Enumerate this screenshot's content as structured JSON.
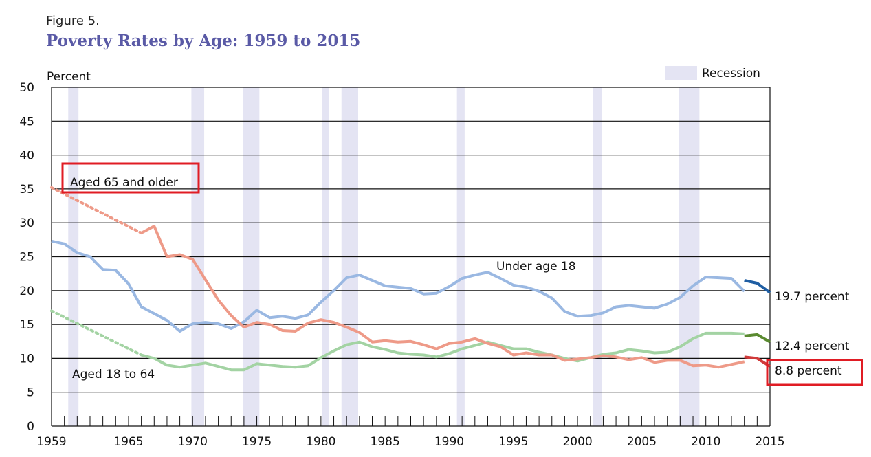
{
  "figure": {
    "label": "Figure 5.",
    "title": "Poverty Rates by Age: 1959 to 2015"
  },
  "chart_data": {
    "type": "line",
    "title": "Poverty Rates by Age: 1959 to 2015",
    "ylabel": "Percent",
    "xlabel": "",
    "xlim": [
      1959,
      2015
    ],
    "ylim": [
      0,
      50
    ],
    "yticks": [
      0,
      5,
      10,
      15,
      20,
      25,
      30,
      35,
      40,
      45,
      50
    ],
    "xtick_labels": [
      1959,
      1965,
      1970,
      1975,
      1980,
      1985,
      1990,
      1995,
      2000,
      2005,
      2010,
      2015
    ],
    "grid": true,
    "legend": {
      "label": "Recession",
      "position": "top-right"
    },
    "recessions": [
      [
        1960.3,
        1961.1
      ],
      [
        1969.9,
        1970.9
      ],
      [
        1973.9,
        1975.2
      ],
      [
        1980.1,
        1980.6
      ],
      [
        1981.6,
        1982.9
      ],
      [
        1990.6,
        1991.2
      ],
      [
        2001.2,
        2001.9
      ],
      [
        2007.9,
        2009.5
      ]
    ],
    "series": [
      {
        "name": "Under age 18",
        "color": "#9ab8e2",
        "points": [
          [
            1959,
            27.3
          ],
          [
            1960,
            26.9
          ],
          [
            1961,
            25.6
          ],
          [
            1962,
            25.0
          ],
          [
            1963,
            23.1
          ],
          [
            1964,
            23.0
          ],
          [
            1965,
            21.0
          ],
          [
            1966,
            17.6
          ],
          [
            1967,
            16.6
          ],
          [
            1968,
            15.6
          ],
          [
            1969,
            14.0
          ],
          [
            1970,
            15.1
          ],
          [
            1971,
            15.3
          ],
          [
            1972,
            15.1
          ],
          [
            1973,
            14.4
          ],
          [
            1974,
            15.4
          ],
          [
            1975,
            17.1
          ],
          [
            1976,
            16.0
          ],
          [
            1977,
            16.2
          ],
          [
            1978,
            15.9
          ],
          [
            1979,
            16.4
          ],
          [
            1980,
            18.3
          ],
          [
            1981,
            20.0
          ],
          [
            1982,
            21.9
          ],
          [
            1983,
            22.3
          ],
          [
            1984,
            21.5
          ],
          [
            1985,
            20.7
          ],
          [
            1986,
            20.5
          ],
          [
            1987,
            20.3
          ],
          [
            1988,
            19.5
          ],
          [
            1989,
            19.6
          ],
          [
            1990,
            20.6
          ],
          [
            1991,
            21.8
          ],
          [
            1992,
            22.3
          ],
          [
            1993,
            22.7
          ],
          [
            1994,
            21.8
          ],
          [
            1995,
            20.8
          ],
          [
            1996,
            20.5
          ],
          [
            1997,
            19.9
          ],
          [
            1998,
            18.9
          ],
          [
            1999,
            16.9
          ],
          [
            2000,
            16.2
          ],
          [
            2001,
            16.3
          ],
          [
            2002,
            16.7
          ],
          [
            2003,
            17.6
          ],
          [
            2004,
            17.8
          ],
          [
            2005,
            17.6
          ],
          [
            2006,
            17.4
          ],
          [
            2007,
            18.0
          ],
          [
            2008,
            19.0
          ],
          [
            2009,
            20.7
          ],
          [
            2010,
            22.0
          ],
          [
            2011,
            21.9
          ],
          [
            2012,
            21.8
          ],
          [
            2013,
            19.9
          ]
        ],
        "recent_points": [
          [
            2013,
            21.5
          ],
          [
            2014,
            21.1
          ],
          [
            2015,
            19.7
          ]
        ],
        "recent_color": "#1f5ea3",
        "end_label": "19.7 percent"
      },
      {
        "name": "Aged 18 to 64",
        "color": "#a3d3a3",
        "dotted_points": [
          [
            1959,
            17.0
          ],
          [
            1966,
            10.5
          ]
        ],
        "points": [
          [
            1966,
            10.5
          ],
          [
            1967,
            10.0
          ],
          [
            1968,
            9.0
          ],
          [
            1969,
            8.7
          ],
          [
            1970,
            9.0
          ],
          [
            1971,
            9.3
          ],
          [
            1972,
            8.8
          ],
          [
            1973,
            8.3
          ],
          [
            1974,
            8.3
          ],
          [
            1975,
            9.2
          ],
          [
            1976,
            9.0
          ],
          [
            1977,
            8.8
          ],
          [
            1978,
            8.7
          ],
          [
            1979,
            8.9
          ],
          [
            1980,
            10.1
          ],
          [
            1981,
            11.1
          ],
          [
            1982,
            12.0
          ],
          [
            1983,
            12.4
          ],
          [
            1984,
            11.7
          ],
          [
            1985,
            11.3
          ],
          [
            1986,
            10.8
          ],
          [
            1987,
            10.6
          ],
          [
            1988,
            10.5
          ],
          [
            1989,
            10.2
          ],
          [
            1990,
            10.7
          ],
          [
            1991,
            11.4
          ],
          [
            1992,
            11.9
          ],
          [
            1993,
            12.4
          ],
          [
            1994,
            11.9
          ],
          [
            1995,
            11.4
          ],
          [
            1996,
            11.4
          ],
          [
            1997,
            10.9
          ],
          [
            1998,
            10.5
          ],
          [
            1999,
            10.0
          ],
          [
            2000,
            9.6
          ],
          [
            2001,
            10.1
          ],
          [
            2002,
            10.6
          ],
          [
            2003,
            10.8
          ],
          [
            2004,
            11.3
          ],
          [
            2005,
            11.1
          ],
          [
            2006,
            10.8
          ],
          [
            2007,
            10.9
          ],
          [
            2008,
            11.7
          ],
          [
            2009,
            12.9
          ],
          [
            2010,
            13.7
          ],
          [
            2011,
            13.7
          ],
          [
            2012,
            13.7
          ],
          [
            2013,
            13.6
          ]
        ],
        "recent_points": [
          [
            2013,
            13.3
          ],
          [
            2014,
            13.5
          ],
          [
            2015,
            12.4
          ]
        ],
        "recent_color": "#5a8a30",
        "end_label": "12.4 percent"
      },
      {
        "name": "Aged 65 and older",
        "color": "#ee9a88",
        "dotted_points": [
          [
            1959,
            35.2
          ],
          [
            1966,
            28.5
          ]
        ],
        "points": [
          [
            1966,
            28.5
          ],
          [
            1967,
            29.5
          ],
          [
            1968,
            25.0
          ],
          [
            1969,
            25.3
          ],
          [
            1970,
            24.6
          ],
          [
            1971,
            21.6
          ],
          [
            1972,
            18.6
          ],
          [
            1973,
            16.3
          ],
          [
            1974,
            14.6
          ],
          [
            1975,
            15.3
          ],
          [
            1976,
            15.0
          ],
          [
            1977,
            14.1
          ],
          [
            1978,
            14.0
          ],
          [
            1979,
            15.2
          ],
          [
            1980,
            15.7
          ],
          [
            1981,
            15.3
          ],
          [
            1982,
            14.6
          ],
          [
            1983,
            13.8
          ],
          [
            1984,
            12.4
          ],
          [
            1985,
            12.6
          ],
          [
            1986,
            12.4
          ],
          [
            1987,
            12.5
          ],
          [
            1988,
            12.0
          ],
          [
            1989,
            11.4
          ],
          [
            1990,
            12.2
          ],
          [
            1991,
            12.4
          ],
          [
            1992,
            12.9
          ],
          [
            1993,
            12.2
          ],
          [
            1994,
            11.7
          ],
          [
            1995,
            10.5
          ],
          [
            1996,
            10.8
          ],
          [
            1997,
            10.5
          ],
          [
            1998,
            10.5
          ],
          [
            1999,
            9.7
          ],
          [
            2000,
            9.9
          ],
          [
            2001,
            10.1
          ],
          [
            2002,
            10.4
          ],
          [
            2003,
            10.2
          ],
          [
            2004,
            9.8
          ],
          [
            2005,
            10.1
          ],
          [
            2006,
            9.4
          ],
          [
            2007,
            9.7
          ],
          [
            2008,
            9.7
          ],
          [
            2009,
            8.9
          ],
          [
            2010,
            9.0
          ],
          [
            2011,
            8.7
          ],
          [
            2012,
            9.1
          ],
          [
            2013,
            9.5
          ]
        ],
        "recent_points": [
          [
            2013,
            10.2
          ],
          [
            2014,
            10.0
          ],
          [
            2015,
            8.8
          ]
        ],
        "recent_color": "#d03a3a",
        "end_label": "8.8 percent"
      }
    ],
    "annotations": [
      "Under age 18",
      "Aged 65 and older",
      "Aged 18 to 64"
    ]
  }
}
